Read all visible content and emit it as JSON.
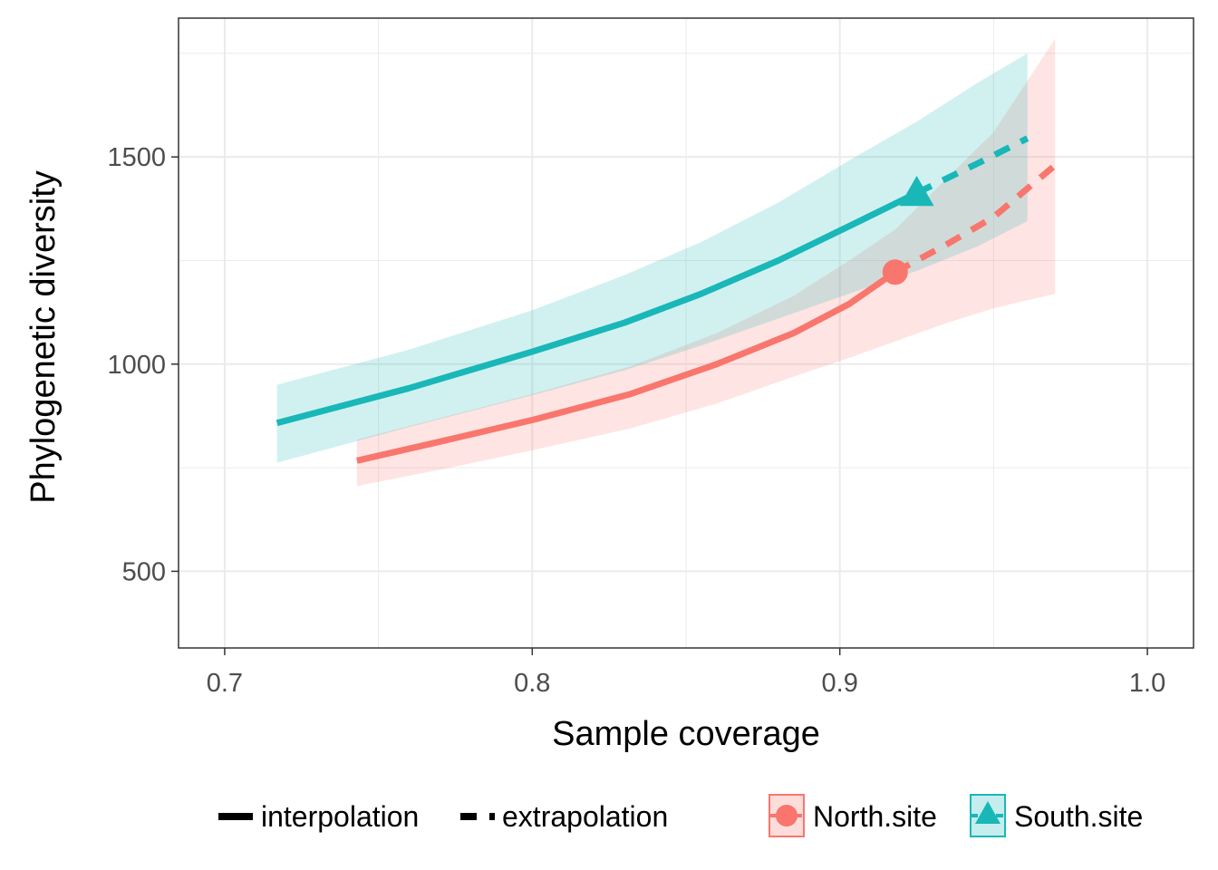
{
  "colors": {
    "north": "#F8766D",
    "south": "#19B7B8",
    "grid": "#EBEBEB",
    "panel_border": "#333333"
  },
  "chart_data": {
    "type": "line",
    "xlabel": "Sample coverage",
    "ylabel": "Phylogenetic diversity",
    "xlim": [
      0.685,
      1.015
    ],
    "ylim": [
      315,
      1835
    ],
    "x_ticks": [
      0.7,
      0.8,
      0.9,
      1.0
    ],
    "x_tick_labels": [
      "0.7",
      "0.8",
      "0.9",
      "1.0"
    ],
    "y_ticks": [
      500,
      1000,
      1500
    ],
    "y_tick_labels": [
      "500",
      "1000",
      "1500"
    ],
    "x_minor_ticks": [
      0.75,
      0.85,
      0.95
    ],
    "y_minor_ticks": [
      750,
      1250,
      1750
    ],
    "grid": true,
    "legend_position": "bottom",
    "legend": {
      "linetype_items": [
        {
          "label": "interpolation",
          "style": "solid"
        },
        {
          "label": "extrapolation",
          "style": "dashed"
        }
      ],
      "site_items": [
        {
          "label": "North.site",
          "shape": "circle",
          "color": "#F8766D"
        },
        {
          "label": "South.site",
          "shape": "triangle",
          "color": "#19B7B8"
        }
      ]
    },
    "series": [
      {
        "name": "North.site",
        "color": "#F8766D",
        "shape": "circle",
        "observed": {
          "x": 0.918,
          "y": 1222
        },
        "interpolation": [
          {
            "x": 0.743,
            "y": 767,
            "lo": 706,
            "hi": 818
          },
          {
            "x": 0.77,
            "y": 813,
            "lo": 745,
            "hi": 870
          },
          {
            "x": 0.8,
            "y": 865,
            "lo": 792,
            "hi": 928
          },
          {
            "x": 0.832,
            "y": 928,
            "lo": 845,
            "hi": 995
          },
          {
            "x": 0.86,
            "y": 1000,
            "lo": 905,
            "hi": 1075
          },
          {
            "x": 0.885,
            "y": 1075,
            "lo": 970,
            "hi": 1165
          },
          {
            "x": 0.903,
            "y": 1145,
            "lo": 1015,
            "hi": 1250
          },
          {
            "x": 0.918,
            "y": 1222,
            "lo": 1055,
            "hi": 1325
          }
        ],
        "extrapolation": [
          {
            "x": 0.918,
            "y": 1222,
            "lo": 1055,
            "hi": 1325
          },
          {
            "x": 0.935,
            "y": 1290,
            "lo": 1100,
            "hi": 1450
          },
          {
            "x": 0.95,
            "y": 1355,
            "lo": 1135,
            "hi": 1560
          },
          {
            "x": 0.97,
            "y": 1480,
            "lo": 1170,
            "hi": 1785
          }
        ]
      },
      {
        "name": "South.site",
        "color": "#19B7B8",
        "shape": "triangle",
        "observed": {
          "x": 0.925,
          "y": 1413
        },
        "interpolation": [
          {
            "x": 0.717,
            "y": 858,
            "lo": 762,
            "hi": 950
          },
          {
            "x": 0.76,
            "y": 942,
            "lo": 848,
            "hi": 1035
          },
          {
            "x": 0.8,
            "y": 1030,
            "lo": 925,
            "hi": 1130
          },
          {
            "x": 0.83,
            "y": 1100,
            "lo": 985,
            "hi": 1215
          },
          {
            "x": 0.855,
            "y": 1170,
            "lo": 1045,
            "hi": 1295
          },
          {
            "x": 0.88,
            "y": 1250,
            "lo": 1110,
            "hi": 1390
          },
          {
            "x": 0.905,
            "y": 1340,
            "lo": 1175,
            "hi": 1500
          },
          {
            "x": 0.925,
            "y": 1413,
            "lo": 1225,
            "hi": 1585
          }
        ],
        "extrapolation": [
          {
            "x": 0.925,
            "y": 1413,
            "lo": 1225,
            "hi": 1585
          },
          {
            "x": 0.945,
            "y": 1485,
            "lo": 1285,
            "hi": 1680
          },
          {
            "x": 0.961,
            "y": 1545,
            "lo": 1345,
            "hi": 1750
          }
        ]
      }
    ]
  }
}
